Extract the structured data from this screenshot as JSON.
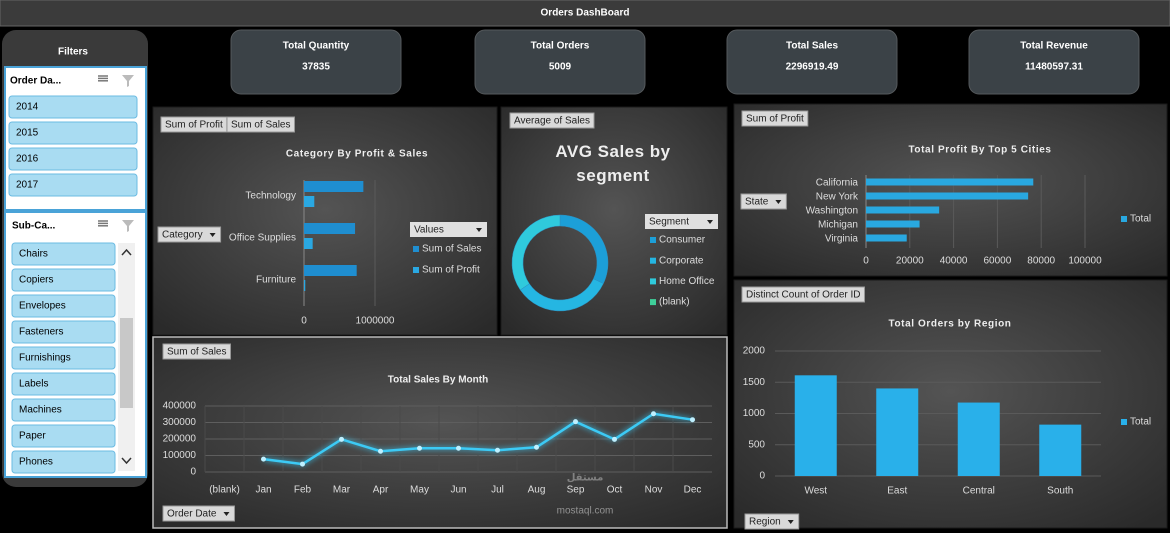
{
  "header": {
    "title": "Orders DashBoard"
  },
  "filters": {
    "title": "Filters",
    "slicers": [
      {
        "title": "Order Da...",
        "items": [
          "2014",
          "2015",
          "2016",
          "2017"
        ]
      },
      {
        "title": "Sub-Ca...",
        "items": [
          "Chairs",
          "Copiers",
          "Envelopes",
          "Fasteners",
          "Furnishings",
          "Labels",
          "Machines",
          "Paper",
          "Phones"
        ]
      }
    ]
  },
  "kpis": [
    {
      "label": "Total Quantity",
      "value": 37835
    },
    {
      "label": "Total Orders",
      "value": 5009
    },
    {
      "label": "Total Sales",
      "value": 2296919.49
    },
    {
      "label": "Total Revenue",
      "value": 11480597.31
    }
  ],
  "chart_data": [
    {
      "type": "bar",
      "orientation": "horizontal",
      "title": "Category By Profit & Sales",
      "field_buttons": [
        "Sum of Profit",
        "Sum of Sales",
        "Category"
      ],
      "categories": [
        "Technology",
        "Office Supplies",
        "Furniture"
      ],
      "series": [
        {
          "name": "Sum of Sales",
          "color": "#1f8ed0",
          "values": [
            836000,
            719000,
            742000
          ]
        },
        {
          "name": "Sum of Profit",
          "color": "#2aa8e2",
          "values": [
            145000,
            122000,
            18000
          ]
        }
      ],
      "legend_title": "Values",
      "xlim": [
        0,
        1000000
      ],
      "xticks": [
        0,
        1000000
      ],
      "grid": true
    },
    {
      "type": "pie",
      "donut": true,
      "title": "AVG Sales by segment",
      "field_buttons": [
        "Average of Sales"
      ],
      "legend_title": "Segment",
      "categories": [
        "Consumer",
        "Corporate",
        "Home Office",
        "(blank)"
      ],
      "values": [
        224,
        234,
        241,
        null
      ],
      "colors": [
        "#1c9fd8",
        "#25b6e2",
        "#2fcadc",
        "#3fcf9a"
      ]
    },
    {
      "type": "bar",
      "orientation": "horizontal",
      "title": "Total Profit By Top 5 Cities",
      "field_buttons": [
        "Sum of Profit",
        "State"
      ],
      "categories": [
        "California",
        "New York",
        "Washington",
        "Michigan",
        "Virginia"
      ],
      "series": [
        {
          "name": "Total",
          "color": "#29a8e0",
          "values": [
            76381,
            74039,
            33403,
            24463,
            18598
          ]
        }
      ],
      "xlim": [
        0,
        100000
      ],
      "xticks": [
        0,
        20000,
        40000,
        60000,
        80000,
        100000
      ],
      "grid": true
    },
    {
      "type": "line",
      "title": "Total Sales By Month",
      "field_buttons": [
        "Sum of Sales",
        "Order Date"
      ],
      "categories": [
        "(blank)",
        "Jan",
        "Feb",
        "Mar",
        "Apr",
        "May",
        "Jun",
        "Jul",
        "Aug",
        "Sep",
        "Oct",
        "Nov",
        "Dec"
      ],
      "values": [
        null,
        78000,
        48000,
        198000,
        126000,
        144000,
        144000,
        132000,
        150000,
        305000,
        198000,
        353000,
        317000
      ],
      "color": "#3ccaf5",
      "ylim": [
        0,
        400000
      ],
      "yticks": [
        0,
        100000,
        200000,
        300000,
        400000
      ],
      "grid": true
    },
    {
      "type": "bar",
      "orientation": "vertical",
      "title": "Total Orders by Region",
      "field_buttons": [
        "Distinct Count of Order ID",
        "Region"
      ],
      "categories": [
        "West",
        "East",
        "Central",
        "South"
      ],
      "series": [
        {
          "name": "Total",
          "color": "#29b0ea",
          "values": [
            1611,
            1401,
            1175,
            822
          ]
        }
      ],
      "ylim": [
        0,
        2000
      ],
      "yticks": [
        0,
        500,
        1000,
        1500,
        2000
      ],
      "grid": true
    }
  ],
  "watermark": {
    "logo": "مستقل",
    "site": "mostaql.com"
  }
}
